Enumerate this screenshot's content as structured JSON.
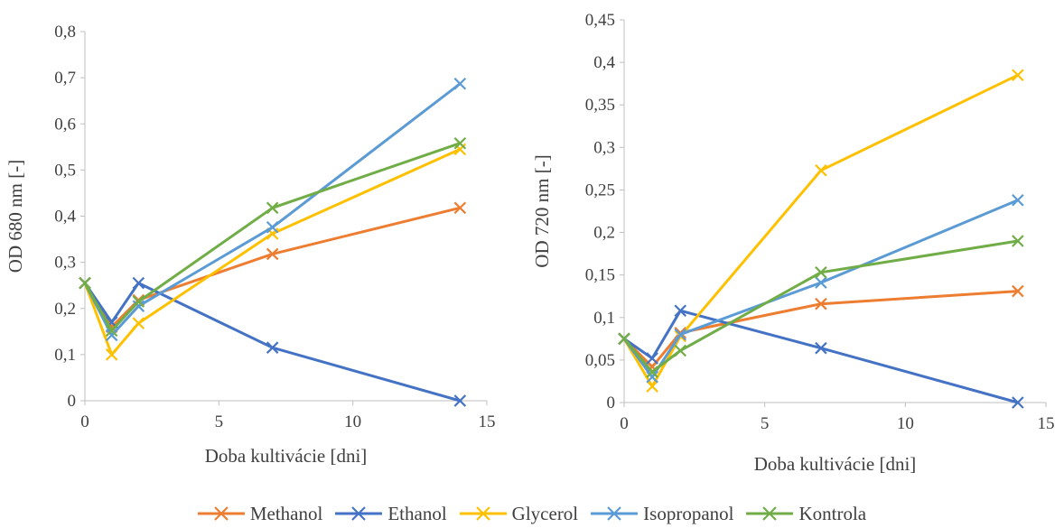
{
  "chart_data": [
    {
      "type": "line",
      "title": "",
      "xlabel": "Doba kultivácie [dni]",
      "ylabel": "OD 680 nm [-]",
      "xlim": [
        0,
        15
      ],
      "ylim": [
        0,
        0.8
      ],
      "x_ticks": [
        "0",
        "5",
        "10",
        "15"
      ],
      "y_ticks": [
        "0",
        "0,1",
        "0,2",
        "0,3",
        "0,4",
        "0,5",
        "0,6",
        "0,7",
        "0,8"
      ],
      "grid": false,
      "x": [
        0,
        1,
        2,
        7,
        14
      ],
      "series": [
        {
          "name": "Methanol",
          "values": [
            0.255,
            0.16,
            0.218,
            0.318,
            0.418
          ]
        },
        {
          "name": "Ethanol",
          "values": [
            0.255,
            0.17,
            0.255,
            0.115,
            0.0
          ]
        },
        {
          "name": "Glycerol",
          "values": [
            0.255,
            0.1,
            0.168,
            0.362,
            0.545
          ]
        },
        {
          "name": "Isopropanol",
          "values": [
            0.255,
            0.142,
            0.205,
            0.376,
            0.687
          ]
        },
        {
          "name": "Kontrola",
          "values": [
            0.255,
            0.152,
            0.215,
            0.418,
            0.558
          ]
        }
      ]
    },
    {
      "type": "line",
      "title": "",
      "xlabel": "Doba kultivácie [dni]",
      "ylabel": "OD 720 nm [-]",
      "xlim": [
        0,
        15
      ],
      "ylim": [
        0,
        0.45
      ],
      "x_ticks": [
        "0",
        "5",
        "10",
        "15"
      ],
      "y_ticks": [
        "0",
        "0,05",
        "0,1",
        "0,15",
        "0,2",
        "0,25",
        "0,3",
        "0,35",
        "0,4",
        "0,45"
      ],
      "grid": false,
      "x": [
        0,
        1,
        2,
        7,
        14
      ],
      "series": [
        {
          "name": "Methanol",
          "values": [
            0.075,
            0.042,
            0.082,
            0.116,
            0.131
          ]
        },
        {
          "name": "Ethanol",
          "values": [
            0.075,
            0.052,
            0.108,
            0.064,
            0.0
          ]
        },
        {
          "name": "Glycerol",
          "values": [
            0.075,
            0.019,
            0.078,
            0.273,
            0.385
          ]
        },
        {
          "name": "Isopropanol",
          "values": [
            0.075,
            0.03,
            0.08,
            0.141,
            0.238
          ]
        },
        {
          "name": "Kontrola",
          "values": [
            0.075,
            0.036,
            0.061,
            0.153,
            0.19
          ]
        }
      ]
    }
  ],
  "legend": {
    "placement": "bottom",
    "items": [
      {
        "label": "Methanol",
        "color": "#ed7d31"
      },
      {
        "label": "Ethanol",
        "color": "#4472c4"
      },
      {
        "label": "Glycerol",
        "color": "#ffc000"
      },
      {
        "label": "Isopropanol",
        "color": "#5b9bd5"
      },
      {
        "label": "Kontrola",
        "color": "#70ad47"
      }
    ]
  }
}
